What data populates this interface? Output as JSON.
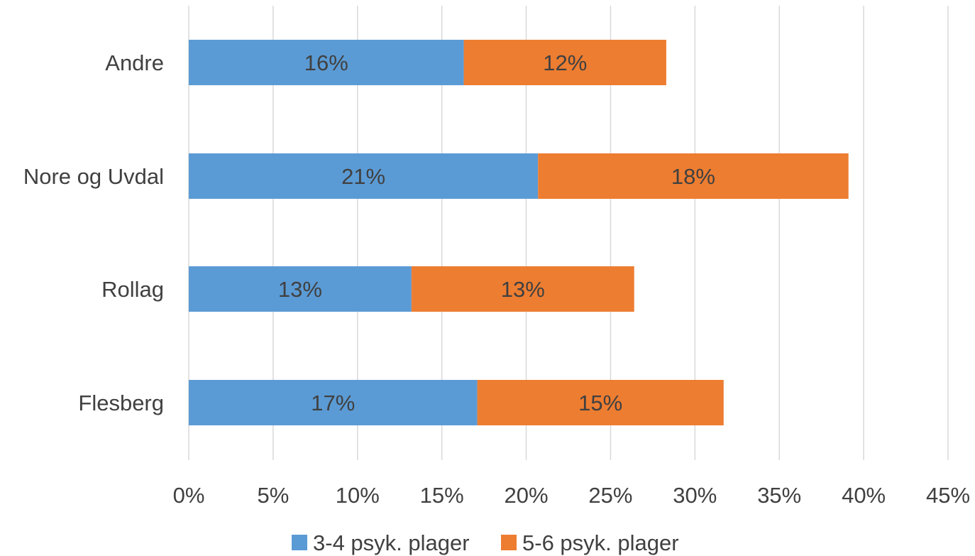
{
  "chart_data": {
    "type": "bar",
    "orientation": "horizontal",
    "stacked": true,
    "categories": [
      "Andre",
      "Nore og Uvdal",
      "Rollag",
      "Flesberg"
    ],
    "series": [
      {
        "name": "3-4 psyk. plager",
        "values": [
          16.3,
          20.7,
          13.2,
          17.1
        ],
        "labels": [
          "16%",
          "21%",
          "13%",
          "17%"
        ],
        "color": "#5b9bd5"
      },
      {
        "name": "5-6 psyk. plager",
        "values": [
          12.0,
          18.4,
          13.2,
          14.6
        ],
        "labels": [
          "12%",
          "18%",
          "13%",
          "15%"
        ],
        "color": "#ed7d31"
      }
    ],
    "xlim": [
      0,
      45
    ],
    "xticks": [
      0,
      5,
      10,
      15,
      20,
      25,
      30,
      35,
      40,
      45
    ],
    "xtick_labels": [
      "0%",
      "5%",
      "10%",
      "15%",
      "20%",
      "25%",
      "30%",
      "35%",
      "40%",
      "45%"
    ],
    "grid": true,
    "legend_position": "bottom"
  }
}
